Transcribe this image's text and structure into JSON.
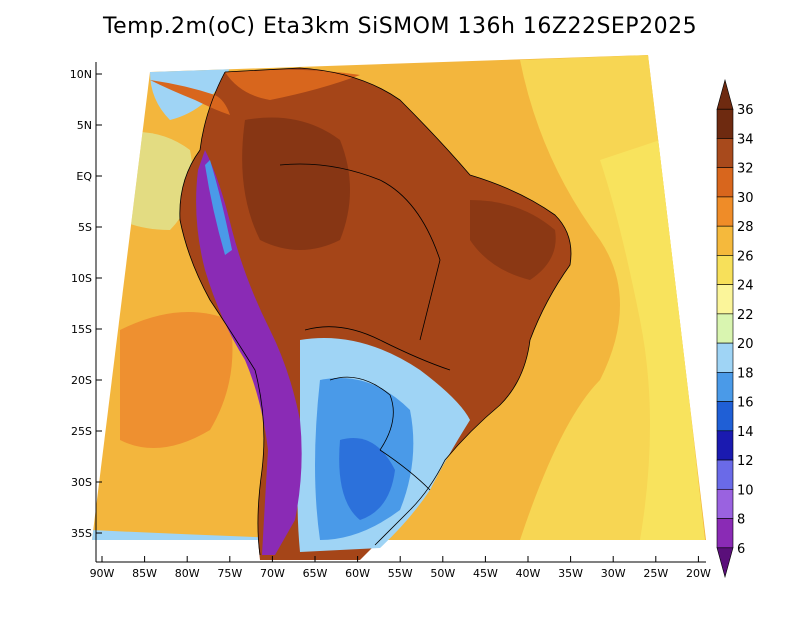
{
  "title": "Temp.2m(oC) Eta3km SiSMOM 136h 16Z22SEP2025",
  "lat_labels": [
    "10N",
    "5N",
    "EQ",
    "5S",
    "10S",
    "15S",
    "20S",
    "25S",
    "30S",
    "35S"
  ],
  "lon_labels": [
    "90W",
    "85W",
    "80W",
    "75W",
    "70W",
    "65W",
    "60W",
    "55W",
    "50W",
    "45W",
    "40W",
    "35W",
    "30W",
    "25W",
    "20W"
  ],
  "colorbar": {
    "levels": [
      "6",
      "8",
      "10",
      "12",
      "14",
      "16",
      "18",
      "20",
      "22",
      "24",
      "26",
      "28",
      "30",
      "32",
      "34",
      "36"
    ],
    "colors": [
      "#5a0f7a",
      "#8a2bb5",
      "#9a62e0",
      "#6a6ae8",
      "#1a1ab0",
      "#1f5fd6",
      "#4a9ae8",
      "#9fd4f5",
      "#d9f5b0",
      "#fbf59a",
      "#f7e05a",
      "#f5b93c",
      "#ef8c28",
      "#d8661d",
      "#a84a1c",
      "#6e2a10"
    ]
  },
  "palette": {
    "ocean_warm": "#f3b63d",
    "ocean_hot": "#ee9030",
    "ocean_cool": "#f8e35d",
    "land_hot": "#a54518",
    "land_very_hot": "#7a3012",
    "land_warm": "#d8661d",
    "south_cool": "#9fd4f5",
    "south_cold": "#4a9ae8",
    "andes": "#8a2bb5"
  }
}
